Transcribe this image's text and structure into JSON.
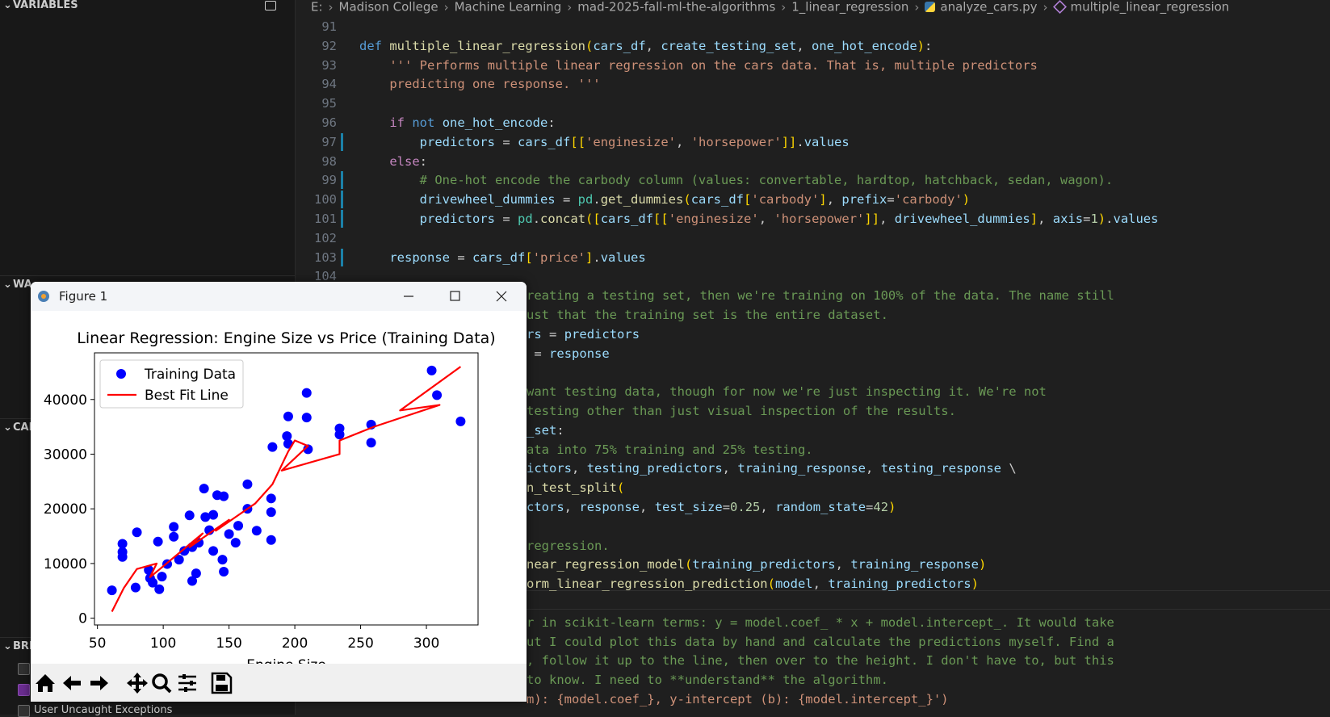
{
  "sidebar": {
    "sections": [
      "VARIABLES",
      "WA",
      "CAL",
      "BRE"
    ],
    "breakpoint_item": "User Uncaught Exceptions"
  },
  "breadcrumbs": [
    "E:",
    "Madison College",
    "Machine Learning",
    "mad-2025-fall-ml-the-algorithms",
    "1_linear_regression",
    "analyze_cars.py",
    "multiple_linear_regression"
  ],
  "editor": {
    "lines": [
      {
        "number": "91",
        "text": null
      },
      {
        "number": "92",
        "text": "def multiple_linear_regression(cars_df, create_testing_set, one_hot_encode):"
      },
      {
        "number": "93",
        "text": "    ''' Performs multiple linear regression on the cars data. That is, multiple predictors",
        "color": "#ce9178"
      },
      {
        "number": "94",
        "text": "    predicting one response. '''",
        "color": "#ce9178"
      },
      {
        "number": "95",
        "text": null
      },
      {
        "number": "96",
        "text": "    if not one_hot_encode:"
      },
      {
        "number": "97",
        "text": "        predictors = cars_df[['enginesize', 'horsepower']].values"
      },
      {
        "number": "98",
        "text": "    else:"
      },
      {
        "number": "99",
        "text": "        # One-hot encode the carbody column (values: convertable, hardtop, hatchback, sedan, wagon)."
      },
      {
        "number": "100",
        "text": "        drivewheel_dummies = pd.get_dummies(cars_df['carbody'], prefix='carbody')"
      },
      {
        "number": "101",
        "text": "        predictors = pd.concat([cars_df[['enginesize', 'horsepower']], drivewheel_dummies], axis=1).values"
      },
      {
        "number": "102",
        "text": null
      },
      {
        "number": "103",
        "text": "    response = cars_df['price'].values"
      },
      {
        "number": "104",
        "text": null
      }
    ],
    "covered_lines": [
      {
        "text": "reating a testing set, then we're training on 100% of the data. The name still",
        "color": "#6a9955"
      },
      {
        "text": "ust that the training set is the entire dataset.",
        "color": "#6a9955"
      },
      {
        "text": "rs = predictors"
      },
      {
        "text": " = response"
      },
      null,
      {
        "text": "want testing data, though for now we're just inspecting it. We're not",
        "color": "#6a9955"
      },
      {
        "text": "testing other than just visual inspection of the results.",
        "color": "#6a9955"
      },
      {
        "text": "_set:"
      },
      {
        "text": "ata into 75% training and 25% testing.",
        "color": "#6a9955"
      },
      {
        "text": "ictors, testing_predictors, training_response, testing_response \\"
      },
      {
        "text": "n_test_split("
      },
      {
        "text": "ctors, response, test_size=0.25, random_state=42)"
      },
      null,
      {
        "text": "regression.",
        "color": "#6a9955"
      },
      {
        "text": "near_regression_model(training_predictors, training_response)"
      },
      {
        "text": "orm_linear_regression_prediction(model, training_predictors)"
      },
      null,
      {
        "text": "r in scikit-learn terms: y = model.coef_ * x + model.intercept_. It would take",
        "color": "#6a9955"
      },
      {
        "text": "ut I could plot this data by hand and calculate the predictions myself. Find a",
        "color": "#6a9955"
      },
      {
        "text": ", follow it up to the line, then over to the height. I don't have to, but this",
        "color": "#6a9955"
      },
      {
        "text": "to know. I need to **understand** the algorithm.",
        "color": "#6a9955"
      },
      {
        "text": "m): {model.coef_}, y-intercept (b): {model.intercept_}')",
        "color": "#ce9178"
      }
    ]
  },
  "figure_window": {
    "title": "Figure 1"
  },
  "chart_data": {
    "type": "scatter",
    "title": "Linear Regression: Engine Size vs Price (Training Data)",
    "x_label": "Engine Size",
    "xlim": [
      47.75,
      339.25
    ],
    "xticks": [
      50,
      100,
      150,
      200,
      250,
      300
    ],
    "ylim": [
      -1240,
      48530
    ],
    "yticks": [
      0,
      10000,
      20000,
      30000,
      40000
    ],
    "legend": "upper left",
    "series": [
      {
        "name": "Training Data",
        "type": "scatter",
        "color": "#0000ff",
        "x": [
          61,
          69,
          69,
          69,
          80,
          79,
          89,
          90,
          92,
          96,
          97,
          99,
          103,
          108,
          108,
          112,
          116,
          120,
          122,
          122,
          125,
          127,
          131,
          132,
          135,
          138,
          138,
          141,
          146,
          145,
          146,
          150,
          155,
          157,
          164,
          164,
          171,
          182,
          182,
          182,
          183,
          194,
          195,
          195,
          209,
          209,
          210,
          234,
          234,
          258,
          258,
          304,
          308,
          326
        ],
        "values": [
          5100,
          13600,
          12100,
          11200,
          15700,
          5600,
          8800,
          7300,
          6500,
          14000,
          5300,
          7600,
          9900,
          16700,
          14900,
          10700,
          12300,
          18800,
          13000,
          6800,
          8200,
          13800,
          23700,
          18500,
          16100,
          18900,
          12300,
          22500,
          22300,
          10700,
          8500,
          15400,
          13800,
          16900,
          24500,
          20000,
          16000,
          21900,
          19400,
          14300,
          31300,
          33300,
          36900,
          31900,
          41200,
          36700,
          30900,
          34700,
          33600,
          35400,
          32100,
          45300,
          40800,
          36000
        ]
      },
      {
        "name": "Best Fit Line",
        "type": "line",
        "color": "#ff0000",
        "x": [
          61,
          70,
          80,
          95,
          90,
          110,
          130,
          120,
          150,
          140,
          170,
          183,
          195,
          200,
          210,
          190,
          234,
          234,
          260,
          310,
          280,
          326
        ],
        "values": [
          1200,
          5500,
          9000,
          10000,
          7500,
          11500,
          15500,
          13000,
          18000,
          16000,
          21000,
          24500,
          30500,
          32500,
          31500,
          27000,
          30000,
          32500,
          35000,
          39000,
          38000,
          46000
        ]
      }
    ]
  }
}
